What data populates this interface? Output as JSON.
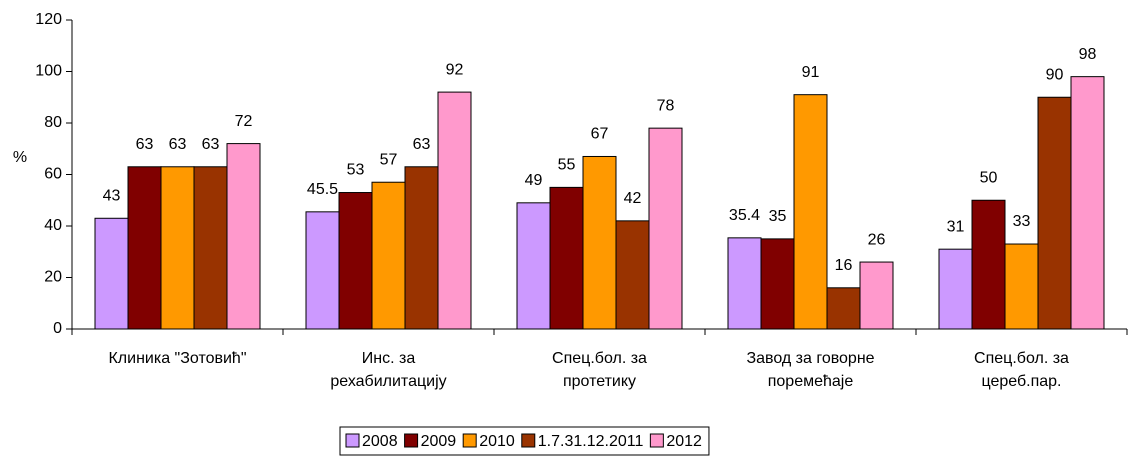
{
  "chart_data": {
    "type": "bar",
    "y_label": "%",
    "categories": [
      "Клиника \"Зотовић\"",
      "Инс. за\nрехабилитацију",
      "Спец.бол. за\nпротетику",
      "Завод за говорне\nпоремећаје",
      "Спец.бол. за\nцереб.пар."
    ],
    "series": [
      {
        "name": "2008",
        "color": "#cc99ff",
        "values": [
          43,
          45.5,
          49,
          35.4,
          31
        ]
      },
      {
        "name": "2009",
        "color": "#800000",
        "values": [
          63,
          53,
          55,
          35,
          50
        ]
      },
      {
        "name": "2010",
        "color": "#ff9900",
        "values": [
          63,
          57,
          67,
          91,
          33
        ]
      },
      {
        "name": "1.7.31.12.2011",
        "color": "#993300",
        "values": [
          63,
          63,
          42,
          16,
          90
        ]
      },
      {
        "name": "2012",
        "color": "#ff99cc",
        "values": [
          72,
          92,
          78,
          26,
          98
        ]
      }
    ],
    "ylim": [
      0,
      120
    ],
    "yticks": [
      0,
      20,
      40,
      60,
      80,
      100,
      120
    ],
    "grid": false,
    "legend": "bottom"
  }
}
